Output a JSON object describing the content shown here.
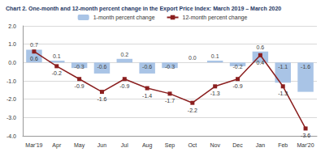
{
  "chart_data": {
    "type": "bar",
    "title": "Chart 2. One-month and 12-month percent change in the Export Price Index: March 2019 – March 2020",
    "categories": [
      "Mar'19",
      "Apr",
      "May",
      "Jun",
      "Jul",
      "Aug",
      "Sep",
      "Oct",
      "Nov",
      "Dec",
      "Jan",
      "Feb",
      "Mar'20"
    ],
    "series": [
      {
        "name": "1-month percent change",
        "type": "bar",
        "color": "#a9c4e6",
        "values": [
          0.7,
          0.1,
          -0.3,
          -0.6,
          0.2,
          -0.6,
          -0.3,
          0.0,
          0.1,
          -0.2,
          0.6,
          -1.1,
          -1.6
        ],
        "value_labels": [
          "0.7",
          "0.1",
          "-0.3",
          "-0.6",
          "0.2",
          "-0.6",
          "-0.3",
          "0.0",
          "0.1",
          "-0.2",
          "0.6",
          "-1.1",
          "-1.6"
        ]
      },
      {
        "name": "12-month percent change",
        "type": "line",
        "color": "#8b1f1f",
        "marker": "square",
        "values": [
          0.6,
          -0.2,
          -0.9,
          -1.6,
          -0.9,
          -1.4,
          -1.7,
          -2.2,
          -1.3,
          -0.9,
          0.4,
          -1.3,
          -3.6
        ],
        "value_labels": [
          "0.6",
          "-0.2",
          "-0.9",
          "-1.6",
          "-0.9",
          "-1.4",
          "-1.7",
          "-2.2",
          "-1.3",
          "-0.9",
          "0.4",
          "-1.3",
          "-3.6"
        ]
      }
    ],
    "ylim": [
      -4,
      2
    ],
    "yticks": [
      {
        "value": -4,
        "label": "-4.0"
      },
      {
        "value": -3,
        "label": "-3.0"
      },
      {
        "value": -2,
        "label": "-2.0"
      },
      {
        "value": -1,
        "label": "-1.0"
      },
      {
        "value": 0,
        "label": "0.0"
      },
      {
        "value": 1,
        "label": "1.0"
      },
      {
        "value": 2,
        "label": "2.0"
      }
    ],
    "grid": true,
    "legend": "top",
    "data_labels": true
  }
}
